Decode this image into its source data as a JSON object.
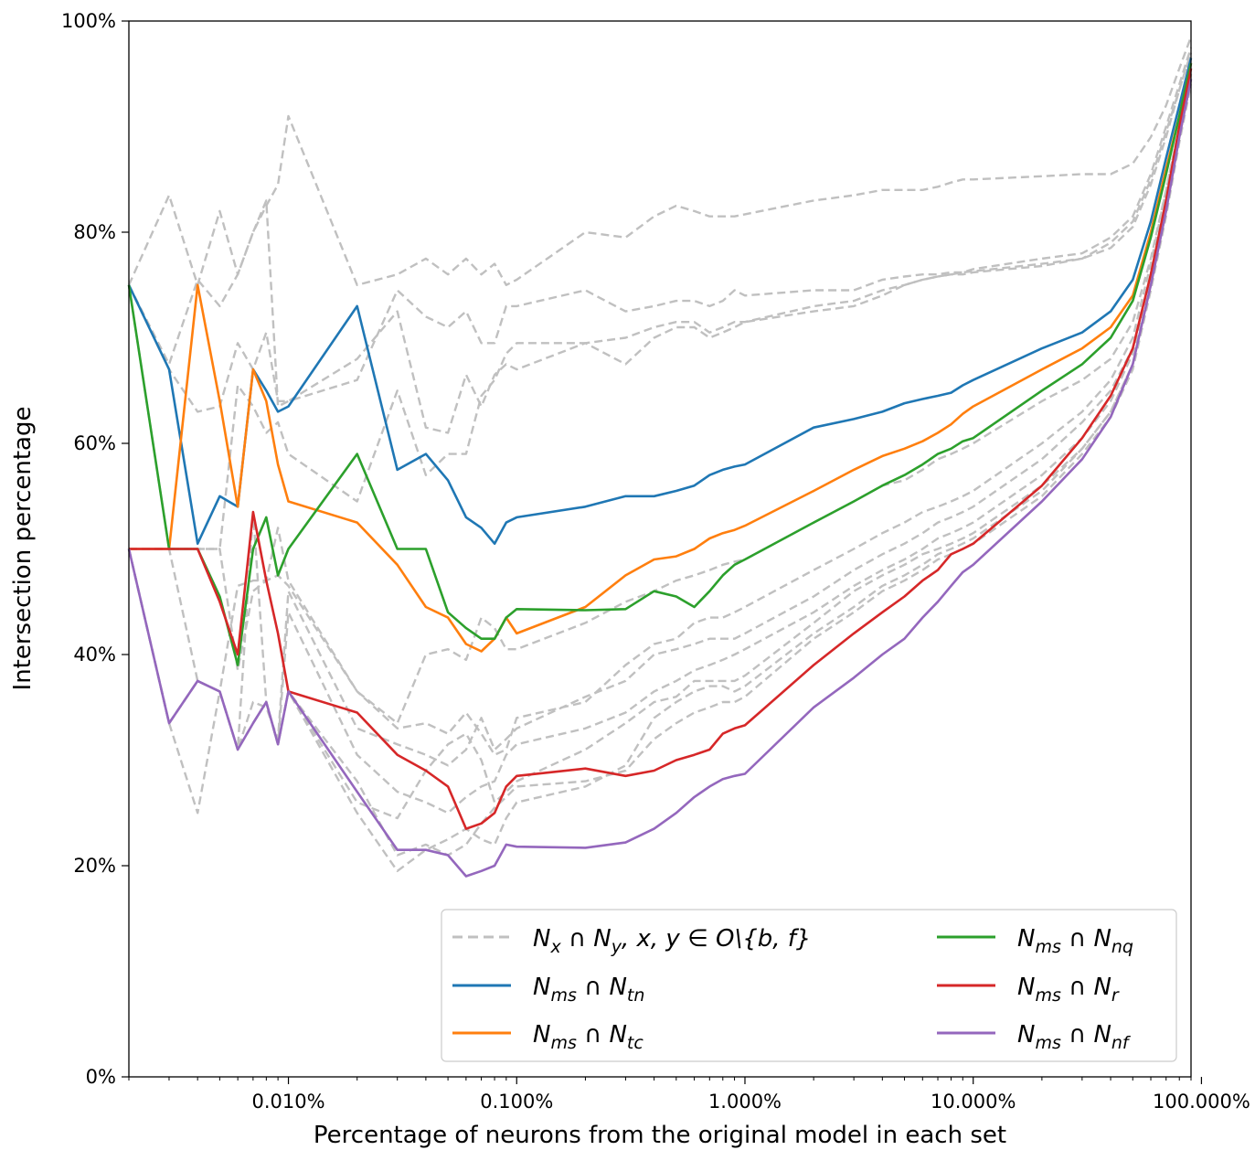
{
  "chart_data": {
    "type": "line",
    "title": "",
    "xlabel": "Percentage of neurons from the original model in each set",
    "ylabel": "Intersection percentage",
    "xscale": "log",
    "xlim": [
      0.002,
      90
    ],
    "ylim": [
      0,
      100
    ],
    "x_ticks": [
      0.01,
      0.1,
      1,
      10,
      100
    ],
    "x_tick_labels": [
      "0.010%",
      "0.100%",
      "1.000%",
      "10.000%",
      "100.000%"
    ],
    "y_ticks": [
      0,
      20,
      40,
      60,
      80,
      100
    ],
    "y_tick_labels": [
      "0%",
      "20%",
      "40%",
      "60%",
      "80%",
      "100%"
    ],
    "grid": false,
    "legend_position": "lower-right",
    "colors": {
      "gray": "#c0c0c0",
      "tn": "#1f77b4",
      "tc": "#ff7f0e",
      "nq": "#2ca02c",
      "r": "#d62728",
      "nf": "#9467bd"
    },
    "x": [
      0.002,
      0.003,
      0.004,
      0.005,
      0.006,
      0.007,
      0.008,
      0.009,
      0.01,
      0.02,
      0.03,
      0.04,
      0.05,
      0.06,
      0.07,
      0.08,
      0.09,
      0.1,
      0.2,
      0.3,
      0.4,
      0.5,
      0.6,
      0.7,
      0.8,
      0.9,
      1,
      2,
      3,
      4,
      5,
      6,
      7,
      8,
      9,
      10,
      20,
      30,
      40,
      50,
      60,
      70,
      80,
      90
    ],
    "series": [
      {
        "name": "N_ms ∩ N_tn",
        "color_key": "tn",
        "values": [
          75,
          67,
          50.5,
          55,
          54,
          67,
          65,
          63,
          63.5,
          73,
          57.5,
          59,
          56.5,
          53,
          52,
          50.5,
          52.5,
          53,
          54,
          55,
          55,
          55.5,
          56,
          57,
          57.5,
          57.8,
          58,
          61.5,
          62.3,
          63,
          63.8,
          64.2,
          64.5,
          64.8,
          65.5,
          66,
          69,
          70.5,
          72.5,
          75.5,
          81,
          87,
          92,
          96.5
        ]
      },
      {
        "name": "N_ms ∩ N_tc",
        "color_key": "tc",
        "values": [
          50,
          50,
          75,
          64,
          54,
          67,
          64,
          58,
          54.5,
          52.5,
          48.5,
          44.5,
          43.5,
          41,
          40.3,
          41.5,
          43.5,
          42,
          44.5,
          47.5,
          49,
          49.3,
          50,
          51,
          51.5,
          51.8,
          52.2,
          55.5,
          57.5,
          58.8,
          59.5,
          60.2,
          61,
          61.8,
          62.8,
          63.5,
          67,
          69,
          71,
          74,
          80,
          86,
          91,
          96
        ]
      },
      {
        "name": "N_ms ∩ N_nq",
        "color_key": "nq",
        "values": [
          75,
          50,
          50,
          45.5,
          39,
          50,
          53,
          47.5,
          50,
          59,
          50,
          50,
          44,
          42.5,
          41.5,
          41.5,
          43.5,
          44.3,
          44.2,
          44.3,
          46,
          45.5,
          44.5,
          46,
          47.5,
          48.5,
          49,
          52.5,
          54.5,
          56,
          57,
          58,
          59,
          59.5,
          60.2,
          60.5,
          65,
          67.5,
          70,
          73.5,
          79.5,
          85.5,
          91,
          96
        ]
      },
      {
        "name": "N_ms ∩ N_r",
        "color_key": "r",
        "values": [
          50,
          50,
          50,
          45,
          40,
          53.5,
          47,
          42,
          36.5,
          34.5,
          30.5,
          29,
          27.5,
          23.5,
          24,
          25,
          27.5,
          28.5,
          29.2,
          28.5,
          29,
          30,
          30.5,
          31,
          32.5,
          33,
          33.3,
          39,
          42,
          44,
          45.5,
          47,
          48,
          49.5,
          50,
          50.5,
          56,
          60.5,
          64.5,
          69,
          76,
          83,
          90,
          95.5
        ]
      },
      {
        "name": "N_ms ∩ N_nf",
        "color_key": "nf",
        "values": [
          50,
          33.5,
          37.5,
          36.5,
          31,
          33.5,
          35.5,
          31.5,
          36.5,
          27,
          21.5,
          21.5,
          21,
          19,
          19.5,
          20,
          22,
          21.8,
          21.7,
          22.2,
          23.5,
          25,
          26.5,
          27.5,
          28.2,
          28.5,
          28.7,
          35,
          37.8,
          40,
          41.5,
          43.5,
          45,
          46.5,
          47.8,
          48.5,
          54.5,
          58.5,
          62.5,
          67.5,
          75,
          82,
          89,
          94.5
        ]
      }
    ],
    "gray_series": [
      [
        75,
        83.5,
        75,
        82,
        76,
        80,
        82.5,
        84.5,
        91,
        75,
        76,
        77.5,
        76,
        77.5,
        76,
        77,
        75,
        75.5,
        80,
        79.5,
        81.5,
        82.5,
        82,
        81.5,
        81.5,
        81.5,
        81.7,
        83,
        83.5,
        84,
        84,
        84,
        84.3,
        84.7,
        85,
        85,
        85.3,
        85.5,
        85.5,
        86.5,
        89,
        92,
        95.5,
        98.5
      ],
      [
        75,
        67.5,
        75.5,
        73,
        76,
        80,
        83,
        63.5,
        64,
        66,
        74.5,
        72,
        71,
        72.5,
        69.5,
        69.5,
        73,
        73,
        74.5,
        72.5,
        73,
        73.5,
        73.5,
        73,
        73.5,
        74.5,
        74,
        74.5,
        74.5,
        75.5,
        75.8,
        76,
        76,
        76.2,
        76.2,
        76.5,
        77.5,
        78,
        79.5,
        81.5,
        85.5,
        90,
        94,
        97.5
      ],
      [
        75,
        67,
        63,
        63.5,
        69.5,
        67,
        70.5,
        64,
        64,
        68,
        72.5,
        61.5,
        61,
        66.5,
        63.5,
        66.5,
        67.5,
        67,
        69.5,
        70,
        71,
        71.5,
        71.5,
        70.5,
        71,
        71.5,
        71.5,
        73,
        73.5,
        74.5,
        75,
        75.5,
        75.8,
        76,
        76.2,
        76.3,
        77,
        77.5,
        79,
        81,
        85,
        89.5,
        93.5,
        97
      ],
      [
        75,
        50,
        50,
        50,
        65.5,
        63.5,
        61,
        62,
        59,
        54.5,
        65,
        57,
        59,
        59,
        64.5,
        66,
        68.5,
        69.5,
        69.5,
        67.5,
        70,
        71,
        71,
        70,
        70.5,
        71,
        71.5,
        72.5,
        73,
        74,
        75,
        75.5,
        75.8,
        76,
        76,
        76.2,
        76.8,
        77.5,
        78.5,
        80.5,
        84.5,
        89,
        93.5,
        97
      ],
      [
        50,
        50,
        50,
        50,
        38.5,
        46,
        47,
        52,
        47,
        36.5,
        33.5,
        40,
        40.5,
        39.5,
        43.5,
        42.5,
        40.5,
        40.5,
        43,
        45,
        46,
        47,
        47.5,
        48,
        48.5,
        48.8,
        49,
        52.5,
        54.5,
        56,
        56.5,
        57.5,
        58.5,
        59,
        59.5,
        60,
        64,
        66,
        68,
        71.5,
        77.5,
        84,
        90,
        95.5
      ],
      [
        50,
        50,
        37.5,
        36.5,
        46.5,
        47,
        47,
        47.5,
        46.5,
        36.5,
        33,
        33.5,
        32.5,
        34.5,
        32.5,
        30.5,
        31,
        34,
        35.5,
        39,
        41,
        41.5,
        43,
        43.5,
        43.5,
        44,
        44.5,
        48,
        50,
        51.5,
        52.5,
        53.5,
        54,
        54.5,
        55,
        55.5,
        60,
        63,
        66,
        70,
        77,
        84,
        90,
        95
      ],
      [
        50,
        33.5,
        25,
        36.5,
        31,
        35.5,
        35,
        32,
        46,
        33,
        31.5,
        30.5,
        29.5,
        31,
        34,
        31,
        32,
        33,
        36,
        37.5,
        40,
        40.5,
        41,
        41.5,
        41.5,
        41.5,
        42,
        45.5,
        48,
        49.5,
        50.5,
        51.5,
        52.5,
        53,
        53.5,
        54,
        58.5,
        62,
        65,
        69,
        76,
        83,
        89.5,
        95
      ],
      [
        50,
        33.5,
        37.5,
        36.5,
        31,
        53.5,
        35.5,
        31.5,
        44,
        30.5,
        27,
        26,
        25,
        26.5,
        27.5,
        28,
        30.5,
        31.5,
        33,
        34.5,
        36.5,
        37.5,
        38.5,
        39,
        39.5,
        40,
        40.5,
        44,
        46.5,
        48,
        49,
        50,
        51,
        51.5,
        52,
        52.5,
        57,
        60.5,
        64,
        68.5,
        75.5,
        82.5,
        89,
        94.5
      ],
      [
        50,
        33.5,
        37.5,
        36.5,
        31,
        33.5,
        35.5,
        31.5,
        36.5,
        26,
        24.5,
        29,
        31.5,
        32.5,
        30,
        26,
        27,
        28,
        31,
        33.5,
        35.5,
        36,
        37.5,
        37.5,
        37.5,
        37.5,
        38,
        43,
        46,
        47.5,
        48.5,
        49.5,
        50,
        50.5,
        51,
        51.5,
        56,
        59.5,
        63,
        67.5,
        75,
        82,
        89,
        94.5
      ],
      [
        50,
        33.5,
        37.5,
        36.5,
        31,
        33.5,
        35.5,
        31.5,
        36.5,
        25,
        19.5,
        21.5,
        22.5,
        23.5,
        22.5,
        22,
        24.5,
        26,
        27.5,
        29.5,
        34,
        35.5,
        36.5,
        37,
        37,
        36.5,
        37,
        42,
        44.5,
        46.5,
        47.5,
        48.5,
        49.5,
        50,
        50.5,
        51,
        55.5,
        59.5,
        63,
        67.5,
        75,
        82,
        89,
        94.5
      ],
      [
        50,
        33.5,
        37.5,
        36.5,
        31,
        33.5,
        35.5,
        31.5,
        36.5,
        28,
        21,
        22,
        21,
        22,
        24,
        25.5,
        26.5,
        27.5,
        28,
        29,
        32,
        33.5,
        34.5,
        35,
        35.5,
        35.5,
        36,
        41.5,
        44,
        46,
        47,
        48,
        49,
        49.5,
        50,
        50.5,
        55,
        59,
        62.5,
        67,
        74.5,
        81.5,
        88.5,
        94
      ]
    ],
    "legend": {
      "gray_label": "N_x ∩ N_y, x, y ∈ O\\{b, f}",
      "entries": [
        {
          "key": "gray",
          "main": "N",
          "sub": "x",
          "mid": " ∩ ",
          "main2": "N",
          "sub2": "y",
          "tail": ", x, y ∈ O\\{b, f}"
        },
        {
          "key": "tn",
          "main": "N",
          "sub": "ms",
          "mid": " ∩ ",
          "main2": "N",
          "sub2": "tn",
          "tail": ""
        },
        {
          "key": "tc",
          "main": "N",
          "sub": "ms",
          "mid": " ∩ ",
          "main2": "N",
          "sub2": "tc",
          "tail": ""
        },
        {
          "key": "nq",
          "main": "N",
          "sub": "ms",
          "mid": " ∩ ",
          "main2": "N",
          "sub2": "nq",
          "tail": ""
        },
        {
          "key": "r",
          "main": "N",
          "sub": "ms",
          "mid": " ∩ ",
          "main2": "N",
          "sub2": "r",
          "tail": ""
        },
        {
          "key": "nf",
          "main": "N",
          "sub": "ms",
          "mid": " ∩ ",
          "main2": "N",
          "sub2": "nf",
          "tail": ""
        }
      ]
    }
  }
}
